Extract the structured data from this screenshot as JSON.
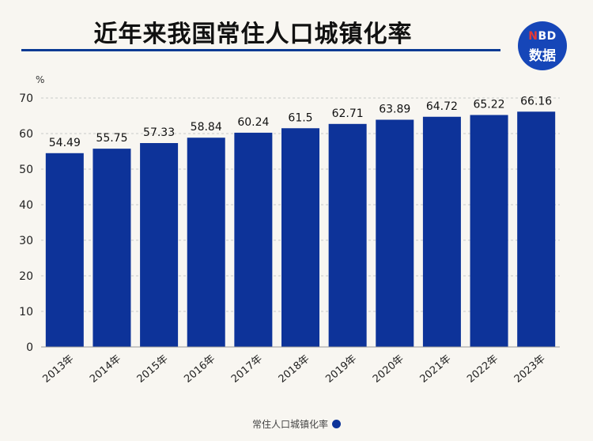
{
  "title": "近年来我国常住人口城镇化率",
  "logo": {
    "line1_prefix": "N",
    "line1_rest": "BD",
    "line2": "数据"
  },
  "legend": {
    "label": "常住人口城镇化率"
  },
  "colors": {
    "bar": "#0d3399",
    "title_rule": "#0a3a94",
    "logo_bg": "#1646b8"
  },
  "chart_data": {
    "type": "bar",
    "title": "近年来我国常住人口城镇化率",
    "ylabel": "%",
    "ylim": [
      0,
      70
    ],
    "yticks": [
      0,
      10,
      20,
      30,
      40,
      50,
      60,
      70
    ],
    "grid": true,
    "legend_position": "bottom",
    "categories": [
      "2013年",
      "2014年",
      "2015年",
      "2016年",
      "2017年",
      "2018年",
      "2019年",
      "2020年",
      "2021年",
      "2022年",
      "2023年"
    ],
    "series": [
      {
        "name": "常住人口城镇化率",
        "values": [
          54.49,
          55.75,
          57.33,
          58.84,
          60.24,
          61.5,
          62.71,
          63.89,
          64.72,
          65.22,
          66.16
        ]
      }
    ],
    "value_labels": [
      "54.49",
      "55.75",
      "57.33",
      "58.84",
      "60.24",
      "61.5",
      "62.71",
      "63.89",
      "64.72",
      "65.22",
      "66.16"
    ]
  }
}
